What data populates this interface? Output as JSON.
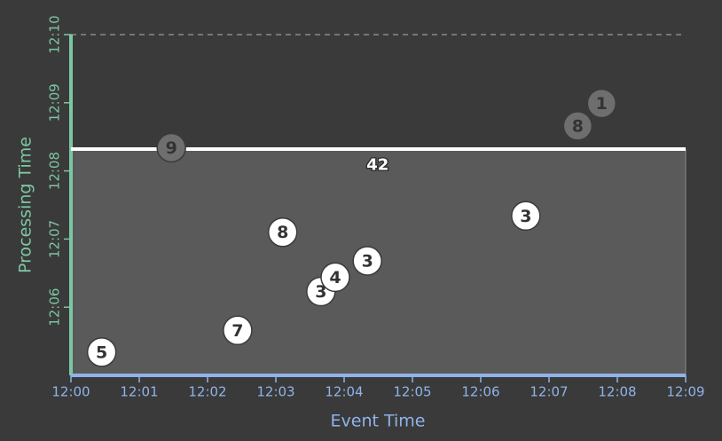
{
  "chart_data": {
    "type": "scatter",
    "x_label": "Event Time",
    "y_label": "Processing Time",
    "xlim": [
      0,
      9
    ],
    "ylim": [
      5,
      10
    ],
    "xticks": [
      {
        "value": 0,
        "label": "12:00"
      },
      {
        "value": 1,
        "label": "12:01"
      },
      {
        "value": 2,
        "label": "12:02"
      },
      {
        "value": 3,
        "label": "12:03"
      },
      {
        "value": 4,
        "label": "12:04"
      },
      {
        "value": 5,
        "label": "12:05"
      },
      {
        "value": 6,
        "label": "12:06"
      },
      {
        "value": 7,
        "label": "12:07"
      },
      {
        "value": 8,
        "label": "12:08"
      },
      {
        "value": 9,
        "label": "12:09"
      }
    ],
    "yticks": [
      {
        "value": 6,
        "label": "12:06"
      },
      {
        "value": 7,
        "label": "12:07"
      },
      {
        "value": 8,
        "label": "12:08"
      },
      {
        "value": 9,
        "label": "12:09"
      },
      {
        "value": 10,
        "label": "12:10"
      }
    ],
    "x_axis_color": "#8fb3ea",
    "y_axis_color": "#7cc7a2",
    "watermark": 8.32,
    "series": [
      {
        "color": "#ffffff",
        "x": [
          0.45,
          2.44,
          3.1,
          3.66,
          3.87,
          4.34,
          6.66
        ],
        "values": [
          5.34,
          5.66,
          7.1,
          6.23,
          6.44,
          6.68,
          7.34
        ],
        "labels": [
          5,
          7,
          8,
          3,
          4,
          3,
          3
        ]
      },
      {
        "color": "#6e6e6e",
        "x": [
          1.47,
          7.42,
          7.77
        ],
        "values": [
          8.34,
          8.66,
          8.99
        ],
        "labels": [
          9,
          8,
          1
        ]
      }
    ],
    "annotations": [
      {
        "text": "42",
        "x": 4.49,
        "y": 8.08
      }
    ]
  }
}
